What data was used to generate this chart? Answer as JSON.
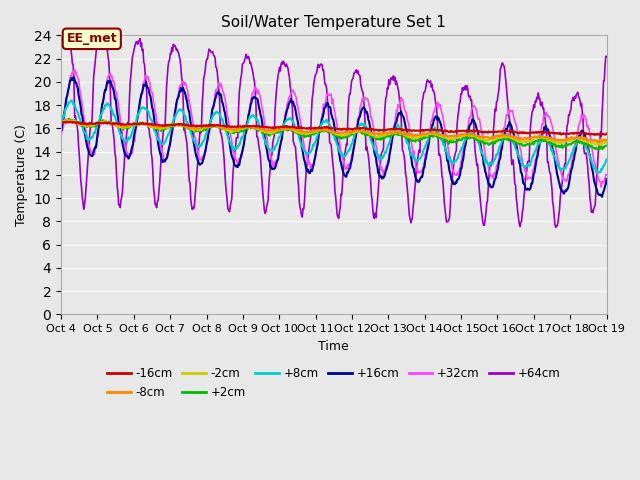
{
  "title": "Soil/Water Temperature Set 1",
  "xlabel": "Time",
  "ylabel": "Temperature (C)",
  "xlim": [
    0,
    15
  ],
  "ylim": [
    0,
    24
  ],
  "yticks": [
    0,
    2,
    4,
    6,
    8,
    10,
    12,
    14,
    16,
    18,
    20,
    22,
    24
  ],
  "xtick_labels": [
    "Oct 4",
    "Oct 5",
    "Oct 6",
    "Oct 7",
    "Oct 8",
    "Oct 9",
    "Oct 10",
    "Oct 11",
    "Oct 12",
    "Oct 13",
    "Oct 14",
    "Oct 15",
    "Oct 16",
    "Oct 17",
    "Oct 18",
    "Oct 19"
  ],
  "annotation": "EE_met",
  "background_color": "#e8e8e8",
  "series_colors": {
    "-16cm": "#cc0000",
    "-8cm": "#ff8800",
    "-2cm": "#cccc00",
    "+2cm": "#00bb00",
    "+8cm": "#00cccc",
    "+16cm": "#000099",
    "+32cm": "#ff44ff",
    "+64cm": "#9900cc"
  },
  "series_lw": {
    "-16cm": 1.5,
    "-8cm": 1.5,
    "-2cm": 1.5,
    "+2cm": 1.5,
    "+8cm": 1.5,
    "+16cm": 1.5,
    "+32cm": 1.2,
    "+64cm": 1.2
  },
  "legend_row1": [
    "-16cm",
    "-8cm",
    "-2cm",
    "+2cm",
    "+8cm",
    "+16cm"
  ],
  "legend_row2": [
    "+32cm",
    "+64cm"
  ]
}
